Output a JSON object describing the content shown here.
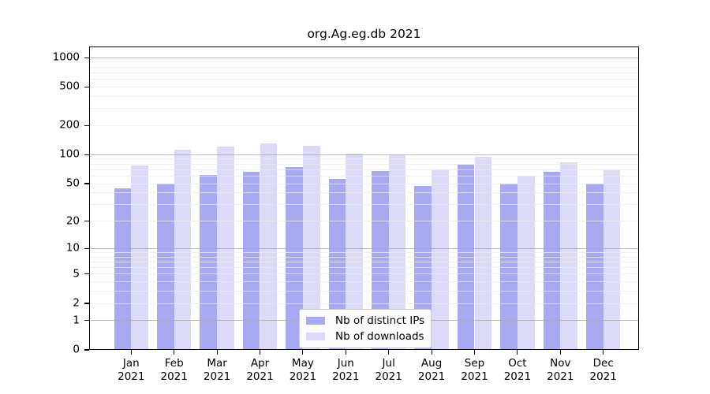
{
  "chart_data": {
    "type": "bar",
    "title": "org.Ag.eg.db 2021",
    "categories": [
      "Jan 2021",
      "Feb 2021",
      "Mar 2021",
      "Apr 2021",
      "May 2021",
      "Jun 2021",
      "Jul 2021",
      "Aug 2021",
      "Sep 2021",
      "Oct 2021",
      "Nov 2021",
      "Dec 2021"
    ],
    "series": [
      {
        "name": "Nb of distinct IPs",
        "color": "#a9a9f1",
        "values": [
          45,
          50,
          62,
          67,
          75,
          56,
          68,
          47,
          79,
          50,
          66,
          50
        ]
      },
      {
        "name": "Nb of downloads",
        "color": "#dbdbf8",
        "values": [
          77,
          113,
          122,
          131,
          124,
          103,
          98,
          71,
          95,
          61,
          84,
          69
        ]
      }
    ],
    "xlabel": "",
    "ylabel": "",
    "y_scale": "log10(value+1)",
    "y_ticks": [
      1000,
      500,
      200,
      100,
      50,
      20,
      10,
      5,
      2,
      1,
      0
    ],
    "ylim": [
      0,
      1300
    ],
    "grid": "horizontal; major lines at 1,10,100,1000; minor lines at 2-9 per decade",
    "legend_position": "inside bottom-center"
  },
  "chart_style": {
    "bar_color_distinct_ips": "#a9a9f1",
    "bar_color_downloads": "#dbdbf8",
    "grid_major_color": "#a6a6a6",
    "grid_minor_color": "#ebebeb",
    "axis_color": "#000000",
    "text_color": "#000000",
    "legend_border_color": "#cccccc",
    "legend_bg_color": "#fcfcfd",
    "background": "#ffffff"
  }
}
